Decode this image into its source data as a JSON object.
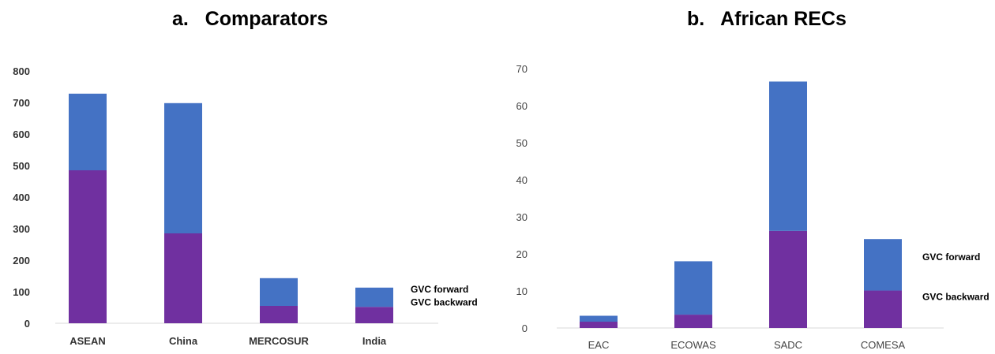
{
  "colors": {
    "forward": "#4472C4",
    "backward": "#7030A0"
  },
  "chart_data": [
    {
      "type": "bar",
      "stacked": true,
      "title": "a.   Comparators",
      "categories": [
        "ASEAN",
        "China",
        "MERCOSUR",
        "India"
      ],
      "series": [
        {
          "name": "GVC backward",
          "values": [
            485,
            285,
            55,
            52
          ]
        },
        {
          "name": "GVC forward",
          "values": [
            243,
            413,
            88,
            61
          ]
        }
      ],
      "ylim": [
        0,
        800
      ],
      "yticks": [
        "0",
        "100",
        "200",
        "300",
        "400",
        "500",
        "600",
        "700",
        "800"
      ],
      "grid": false,
      "legend": "right"
    },
    {
      "type": "bar",
      "stacked": true,
      "title": "b.   African RECs",
      "categories": [
        "EAC",
        "ECOWAS",
        "SADC",
        "COMESA"
      ],
      "series": [
        {
          "name": "GVC backward",
          "values": [
            1.7,
            3.6,
            26.2,
            10.1
          ]
        },
        {
          "name": "GVC forward",
          "values": [
            1.6,
            14.4,
            40.3,
            13.9
          ]
        }
      ],
      "ylim": [
        0,
        70
      ],
      "yticks": [
        "0",
        "10",
        "20",
        "30",
        "40",
        "50",
        "60",
        "70"
      ],
      "grid": false,
      "legend": "right"
    }
  ]
}
